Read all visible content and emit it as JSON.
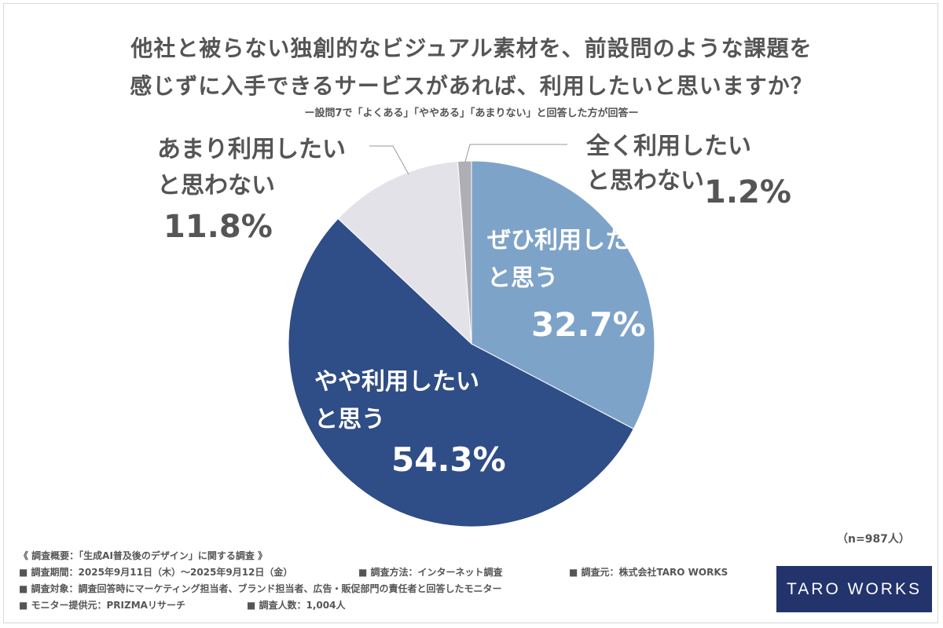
{
  "title_line1": "他社と被らない独創的なビジュアル素材を、前設問のような課題を",
  "title_line2": "感じずに入手できるサービスがあれば、利用したいと思いますか？",
  "subtitle": "ー設問7で「よくある」「ややある」「あまりない」と回答した方が回答ー",
  "n_label": "（n=987人）",
  "chart_data": {
    "type": "pie",
    "title": "他社と被らない独創的なビジュアル素材を、前設問のような課題を感じずに入手できるサービスがあれば、利用したいと思いますか？",
    "slices": [
      {
        "label_line1": "ぜひ利用したい",
        "label_line2": "と思う",
        "value": 32.7,
        "value_label": "32.7%",
        "color": "#7ea3c9"
      },
      {
        "label_line1": "やや利用したい",
        "label_line2": "と思う",
        "value": 54.3,
        "value_label": "54.3%",
        "color": "#2f4d86"
      },
      {
        "label_line1": "あまり利用したい",
        "label_line2": "と思わない",
        "value": 11.8,
        "value_label": "11.8%",
        "color": "#e3e2e8"
      },
      {
        "label_line1": "全く利用したい",
        "label_line2": "と思わない",
        "value": 1.2,
        "value_label": "1.2%",
        "color": "#aeaeb4"
      }
    ],
    "start": "12 o'clock",
    "direction": "clockwise"
  },
  "footer": {
    "heading": "《 調査概要：「生成AI普及後のデザイン」に関する調査 》",
    "period": "■ 調査期間：2025年9月11日（木）〜2025年9月12日（金）",
    "method": "■ 調査方法：インターネット調査",
    "source": "■ 調査元：株式会社TARO WORKS",
    "target": "■ 調査対象：調査回答時にマーケティング担当者、ブランド担当者、広告・販促部門の責任者と回答したモニター",
    "provider": "■ モニター提供元：PRIZMAリサーチ",
    "count": "■ 調査人数：1,004人"
  },
  "logo_text": "TARO WORKS"
}
